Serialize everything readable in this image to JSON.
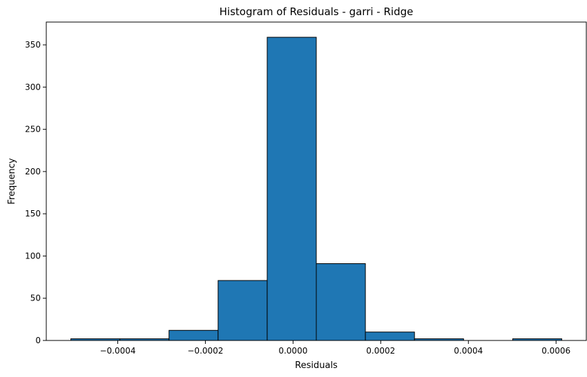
{
  "chart_data": {
    "type": "bar",
    "title": "Histogram of Residuals - garri  - Ridge",
    "xlabel": "Residuals",
    "ylabel": "Frequency",
    "bin_edges": [
      -0.000507,
      -0.000395,
      -0.000283,
      -0.000171,
      -5.9e-05,
      5.3e-05,
      0.000165,
      0.000277,
      0.000389,
      0.000501,
      0.000613
    ],
    "values": [
      2,
      2,
      12,
      71,
      359,
      91,
      10,
      2,
      0,
      2
    ],
    "xlim": [
      -0.000563,
      0.000669
    ],
    "ylim": [
      0,
      377
    ],
    "x_ticks": [
      -0.0004,
      -0.0002,
      0.0,
      0.0002,
      0.0004,
      0.0006
    ],
    "x_tick_labels": [
      "−0.0004",
      "−0.0002",
      "0.0000",
      "0.0002",
      "0.0004",
      "0.0006"
    ],
    "y_ticks": [
      0,
      50,
      100,
      150,
      200,
      250,
      300,
      350
    ],
    "y_tick_labels": [
      "0",
      "50",
      "100",
      "150",
      "200",
      "250",
      "300",
      "350"
    ],
    "bar_color": "#1f77b4",
    "edge_color": "#000000",
    "grid": false,
    "legend": "none"
  }
}
